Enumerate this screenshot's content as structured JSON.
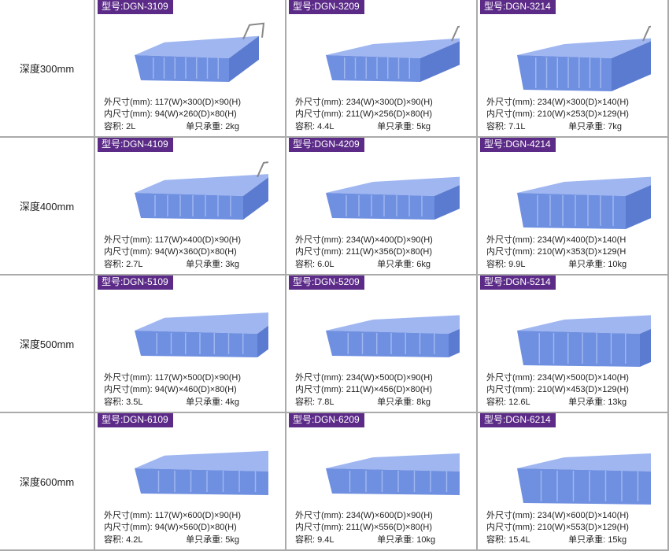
{
  "colors": {
    "badge": "#5c2b88",
    "bin": "#6f8fe0",
    "border": "#aaaaaa"
  },
  "labels": {
    "outer": "外尺寸(mm): ",
    "inner": "内尺寸(mm): ",
    "volume": "容积: ",
    "load": "单只承重: ",
    "model_prefix": "型号:"
  },
  "rows": [
    {
      "depth": "深度300mm",
      "items": [
        {
          "model": "DGN-3109",
          "outer": "117(W)×300(D)×90(H)",
          "inner": "94(W)×260(D)×80(H)",
          "volume": "2L",
          "load": "2kg"
        },
        {
          "model": "DGN-3209",
          "outer": "234(W)×300(D)×90(H)",
          "inner": "211(W)×256(D)×80(H)",
          "volume": "4.4L",
          "load": "5kg"
        },
        {
          "model": "DGN-3214",
          "outer": "234(W)×300(D)×140(H)",
          "inner": "210(W)×253(D)×129(H)",
          "volume": "7.1L",
          "load": "7kg"
        }
      ]
    },
    {
      "depth": "深度400mm",
      "items": [
        {
          "model": "DGN-4109",
          "outer": "117(W)×400(D)×90(H)",
          "inner": "94(W)×360(D)×80(H)",
          "volume": "2.7L",
          "load": "3kg"
        },
        {
          "model": "DGN-4209",
          "outer": "234(W)×400(D)×90(H)",
          "inner": "211(W)×356(D)×80(H)",
          "volume": "6.0L",
          "load": "6kg"
        },
        {
          "model": "DGN-4214",
          "outer": "234(W)×400(D)×140(H",
          "inner": "210(W)×353(D)×129(H",
          "volume": "9.9L",
          "load": "10kg",
          "overflow": ")\n)"
        }
      ]
    },
    {
      "depth": "深度500mm",
      "items": [
        {
          "model": "DGN-5109",
          "outer": "117(W)×500(D)×90(H)",
          "inner": "94(W)×460(D)×80(H)",
          "volume": "3.5L",
          "load": "4kg"
        },
        {
          "model": "DGN-5209",
          "outer": "234(W)×500(D)×90(H)",
          "inner": "211(W)×456(D)×80(H)",
          "volume": "7.8L",
          "load": "8kg"
        },
        {
          "model": "DGN-5214",
          "outer": "234(W)×500(D)×140(H)",
          "inner": "210(W)×453(D)×129(H)",
          "volume": "12.6L",
          "load": "13kg"
        }
      ]
    },
    {
      "depth": "深度600mm",
      "items": [
        {
          "model": "DGN-6109",
          "outer": "117(W)×600(D)×90(H)",
          "inner": "94(W)×560(D)×80(H)",
          "volume": "4.2L",
          "load": "5kg"
        },
        {
          "model": "DGN-6209",
          "outer": "234(W)×600(D)×90(H)",
          "inner": "211(W)×556(D)×80(H)",
          "volume": "9.4L",
          "load": "10kg"
        },
        {
          "model": "DGN-6214",
          "outer": "234(W)×600(D)×140(H)",
          "inner": "210(W)×553(D)×129(H)",
          "volume": "15.4L",
          "load": "15kg"
        }
      ]
    }
  ]
}
